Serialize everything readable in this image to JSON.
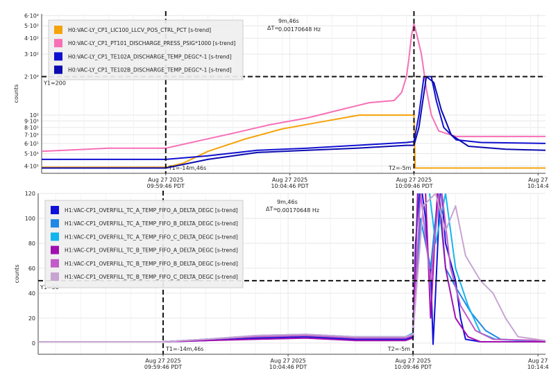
{
  "chart_data": [
    {
      "type": "line",
      "ylabel": "counts",
      "yscale": "log",
      "ylim": [
        35,
        620
      ],
      "x_ticks": [
        {
          "t": 14.3,
          "line1": "Aug 27 2025",
          "line2": "09:59:46 PDT"
        },
        {
          "t": 19.3,
          "line1": "Aug 27 2025",
          "line2": "10:04:46 PDT"
        },
        {
          "t": 24.3,
          "line1": "Aug 27 2025",
          "line2": "10:09:46 PDT"
        },
        {
          "t": 29.3,
          "line1": "Aug 27",
          "line2": "10:14:4"
        }
      ],
      "y_ticks": [
        {
          "v": 40,
          "label": "4·10¹"
        },
        {
          "v": 50,
          "label": "5·10¹"
        },
        {
          "v": 60,
          "label": "6·10¹"
        },
        {
          "v": 70,
          "label": "7·10¹"
        },
        {
          "v": 80,
          "label": "8·10¹"
        },
        {
          "v": 90,
          "label": "9·10¹"
        },
        {
          "v": 100,
          "label": "10²"
        },
        {
          "v": 200,
          "label": "2·10²"
        },
        {
          "v": 300,
          "label": "3·10²"
        },
        {
          "v": 400,
          "label": "4·10²"
        },
        {
          "v": 500,
          "label": "5·10²"
        },
        {
          "v": 600,
          "label": "6·10²"
        }
      ],
      "cursor_y": {
        "value": 200,
        "label": "Y1=200"
      },
      "cursor_t1": {
        "t": 14.3,
        "label": "T1=-14m,46s"
      },
      "cursor_t2": {
        "t": 24.3,
        "label": "T2=-5m"
      },
      "delta_t": {
        "symbol": "ΔT=",
        "line1": "9m,46s",
        "line2": "0.00170648 Hz"
      },
      "legend_position": "top-left",
      "series": [
        {
          "name": "H0:VAC-LY_CP1_LIC100_LLCV_POS_CTRL_PCT [s-trend]",
          "color": "#f5a30a",
          "points": [
            [
              9.3,
              39
            ],
            [
              14.3,
              39
            ],
            [
              15.0,
              42
            ],
            [
              16.0,
              52
            ],
            [
              17.5,
              65
            ],
            [
              19.0,
              78
            ],
            [
              20.5,
              88
            ],
            [
              22.1,
              100
            ],
            [
              24.3,
              100
            ],
            [
              24.35,
              38.5
            ],
            [
              29.6,
              38.5
            ]
          ]
        },
        {
          "name": "H0:VAC-LY_CP1_PT101_DISCHARGE_PRESS_PSIG*1000 [s-trend]",
          "color": "#f76fb6",
          "points": [
            [
              9.3,
              52
            ],
            [
              12.0,
              55
            ],
            [
              14.3,
              55
            ],
            [
              15.5,
              62
            ],
            [
              17.0,
              72
            ],
            [
              18.5,
              84
            ],
            [
              20.0,
              95
            ],
            [
              21.5,
              112
            ],
            [
              22.5,
              125
            ],
            [
              23.5,
              130
            ],
            [
              23.8,
              150
            ],
            [
              24.0,
              200
            ],
            [
              24.1,
              280
            ],
            [
              24.2,
              420
            ],
            [
              24.3,
              520
            ],
            [
              24.45,
              400
            ],
            [
              24.6,
              300
            ],
            [
              24.8,
              160
            ],
            [
              25.0,
              100
            ],
            [
              25.3,
              75
            ],
            [
              26.0,
              68
            ],
            [
              27.5,
              68
            ],
            [
              29.6,
              68
            ]
          ]
        },
        {
          "name": "H0:VAC-LY_CP1_TE102A_DISCHARGE_TEMP_DEGC*-1 [s-trend]",
          "color": "#1010d0",
          "points": [
            [
              9.3,
              45
            ],
            [
              14.3,
              45
            ],
            [
              16.0,
              48
            ],
            [
              18.0,
              53
            ],
            [
              20.0,
              55
            ],
            [
              22.0,
              58
            ],
            [
              24.0,
              61
            ],
            [
              24.3,
              62
            ],
            [
              24.5,
              100
            ],
            [
              24.7,
              200
            ],
            [
              25.0,
              200
            ],
            [
              25.2,
              130
            ],
            [
              25.5,
              80
            ],
            [
              26.0,
              64
            ],
            [
              27.0,
              61
            ],
            [
              29.6,
              60
            ]
          ]
        },
        {
          "name": "H0:VAC-LY_CP1_TE102B_DISCHARGE_TEMP_DEGC*-1 [s-trend]",
          "color": "#0a0ab0",
          "points": [
            [
              9.3,
              38.5
            ],
            [
              14.3,
              38.5
            ],
            [
              16.0,
              45
            ],
            [
              18.0,
              51
            ],
            [
              20.0,
              53
            ],
            [
              22.0,
              55
            ],
            [
              24.0,
              58
            ],
            [
              24.3,
              58
            ],
            [
              24.5,
              80
            ],
            [
              24.8,
              200
            ],
            [
              25.1,
              180
            ],
            [
              25.4,
              110
            ],
            [
              25.8,
              70
            ],
            [
              26.5,
              57
            ],
            [
              28.0,
              54
            ],
            [
              29.6,
              53
            ]
          ]
        }
      ]
    },
    {
      "type": "line",
      "ylabel": "counts",
      "ylim": [
        -9,
        120
      ],
      "x_ticks": [
        {
          "t": 14.3,
          "line1": "Aug 27 2025",
          "line2": "09:59:46 PDT"
        },
        {
          "t": 19.3,
          "line1": "Aug 27 2025",
          "line2": "10:04:46 PDT"
        },
        {
          "t": 24.3,
          "line1": "Aug 27 2025",
          "line2": "10:09:46 PDT"
        },
        {
          "t": 29.3,
          "line1": "Aug 27",
          "line2": "10:14:4"
        }
      ],
      "y_ticks": [
        {
          "v": 0,
          "label": "0"
        },
        {
          "v": 20,
          "label": "20"
        },
        {
          "v": 40,
          "label": "40"
        },
        {
          "v": 60,
          "label": "60"
        },
        {
          "v": 80,
          "label": "80"
        },
        {
          "v": 100,
          "label": "100"
        },
        {
          "v": 120,
          "label": "120"
        }
      ],
      "cursor_y": {
        "value": 50,
        "label": "Y1=50"
      },
      "cursor_t1": {
        "t": 14.3,
        "label": "T1=-14m,46s"
      },
      "cursor_t2": {
        "t": 24.3,
        "label": "T2=-5m"
      },
      "delta_t": {
        "symbol": "ΔT=",
        "line1": "9m,46s",
        "line2": "0.00170648 Hz"
      },
      "legend_position": "top-left",
      "series": [
        {
          "name": "H1:VAC-CP1_OVERFILL_TC_A_TEMP_FIFO_A_DELTA_DEGC [s-trend]",
          "color": "#1010d8",
          "points": [
            [
              9.3,
              1
            ],
            [
              14.3,
              1
            ],
            [
              16.0,
              2
            ],
            [
              18.0,
              4
            ],
            [
              20.0,
              5
            ],
            [
              22.0,
              3
            ],
            [
              24.0,
              3
            ],
            [
              24.3,
              5
            ],
            [
              24.4,
              80
            ],
            [
              24.6,
              130
            ],
            [
              24.8,
              100
            ],
            [
              24.9,
              70
            ],
            [
              25.0,
              60
            ],
            [
              25.1,
              -1
            ],
            [
              25.2,
              40
            ],
            [
              25.4,
              130
            ],
            [
              25.6,
              80
            ],
            [
              25.8,
              65
            ],
            [
              26.0,
              50
            ],
            [
              26.2,
              20
            ],
            [
              26.4,
              3
            ],
            [
              27.0,
              1
            ],
            [
              29.6,
              1
            ]
          ]
        },
        {
          "name": "H1:VAC-CP1_OVERFILL_TC_A_TEMP_FIFO_B_DELTA_DEGC [s-trend]",
          "color": "#1e88e5",
          "points": [
            [
              9.3,
              1
            ],
            [
              14.3,
              1
            ],
            [
              16.0,
              3
            ],
            [
              18.0,
              5
            ],
            [
              20.0,
              6
            ],
            [
              22.0,
              4
            ],
            [
              24.0,
              4
            ],
            [
              24.3,
              7
            ],
            [
              24.6,
              100
            ],
            [
              25.0,
              60
            ],
            [
              25.3,
              120
            ],
            [
              25.6,
              60
            ],
            [
              26.0,
              45
            ],
            [
              26.6,
              25
            ],
            [
              27.2,
              10
            ],
            [
              27.8,
              3
            ],
            [
              29.6,
              1
            ]
          ]
        },
        {
          "name": "H1:VAC-CP1_OVERFILL_TC_A_TEMP_FIFO_C_DELTA_DEGC [s-trend]",
          "color": "#14b4ee",
          "points": [
            [
              9.3,
              1
            ],
            [
              14.3,
              1
            ],
            [
              16.0,
              3
            ],
            [
              18.0,
              6
            ],
            [
              20.0,
              7
            ],
            [
              22.0,
              5
            ],
            [
              24.0,
              5
            ],
            [
              24.3,
              8
            ],
            [
              24.5,
              120
            ],
            [
              24.9,
              130
            ],
            [
              25.2,
              80
            ],
            [
              25.6,
              120
            ],
            [
              26.0,
              60
            ],
            [
              26.5,
              30
            ],
            [
              27.0,
              8
            ],
            [
              27.6,
              3
            ],
            [
              29.6,
              1
            ]
          ]
        },
        {
          "name": "H1:VAC-CP1_OVERFILL_TC_B_TEMP_FIFO_A_DELTA_DEGC [s-trend]",
          "color": "#a010b0",
          "points": [
            [
              9.3,
              1
            ],
            [
              14.3,
              1
            ],
            [
              16.0,
              2
            ],
            [
              18.0,
              3
            ],
            [
              20.0,
              4
            ],
            [
              22.0,
              2
            ],
            [
              24.0,
              2
            ],
            [
              24.3,
              4
            ],
            [
              24.5,
              130
            ],
            [
              24.8,
              120
            ],
            [
              25.0,
              20
            ],
            [
              25.3,
              130
            ],
            [
              25.6,
              60
            ],
            [
              26.0,
              20
            ],
            [
              26.5,
              5
            ],
            [
              27.0,
              1
            ],
            [
              29.6,
              1
            ]
          ]
        },
        {
          "name": "H1:VAC-CP1_OVERFILL_TC_B_TEMP_FIFO_B_DELTA_DEGC [s-trend]",
          "color": "#c15cc8",
          "points": [
            [
              9.3,
              1
            ],
            [
              14.3,
              1
            ],
            [
              16.0,
              3
            ],
            [
              18.0,
              5
            ],
            [
              20.0,
              6
            ],
            [
              22.0,
              4
            ],
            [
              24.0,
              4
            ],
            [
              24.3,
              6
            ],
            [
              24.6,
              120
            ],
            [
              25.0,
              50
            ],
            [
              25.4,
              130
            ],
            [
              25.8,
              60
            ],
            [
              26.2,
              30
            ],
            [
              26.8,
              10
            ],
            [
              27.5,
              3
            ],
            [
              29.6,
              2
            ]
          ]
        },
        {
          "name": "H1:VAC-CP1_OVERFILL_TC_B_TEMP_FIFO_C_DELTA_DEGC [s-trend]",
          "color": "#c7a5d2",
          "points": [
            [
              9.3,
              1
            ],
            [
              14.3,
              1
            ],
            [
              16.0,
              3
            ],
            [
              18.0,
              6
            ],
            [
              20.0,
              7
            ],
            [
              22.0,
              5
            ],
            [
              24.0,
              5
            ],
            [
              24.3,
              7
            ],
            [
              24.7,
              110
            ],
            [
              25.2,
              120
            ],
            [
              25.6,
              90
            ],
            [
              26.0,
              110
            ],
            [
              26.4,
              70
            ],
            [
              27.0,
              50
            ],
            [
              27.5,
              40
            ],
            [
              28.0,
              20
            ],
            [
              28.5,
              5
            ],
            [
              29.6,
              2
            ]
          ]
        }
      ]
    }
  ]
}
